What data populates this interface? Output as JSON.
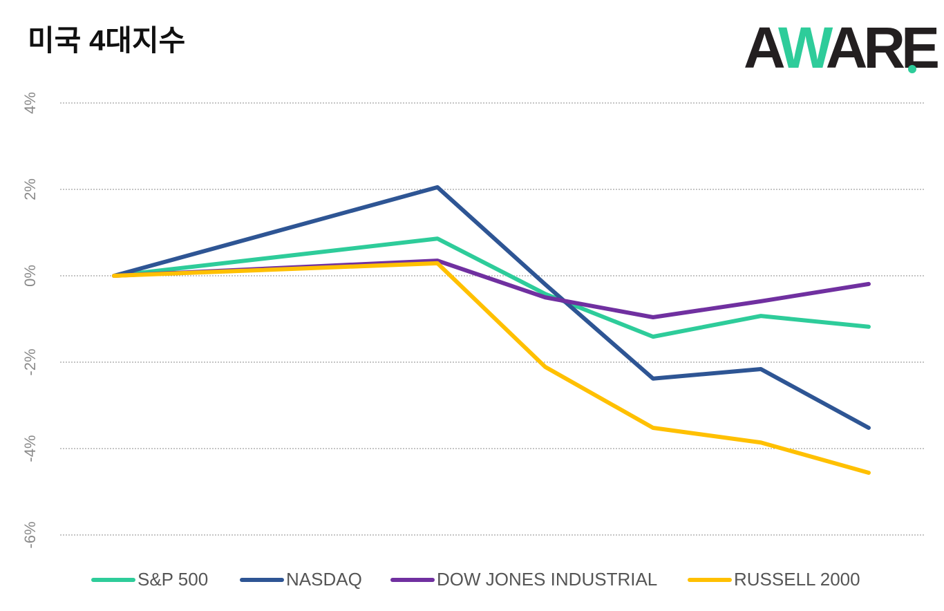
{
  "chart_data": {
    "type": "line",
    "title": "미국 4대지수",
    "logo": [
      "A",
      "W",
      "ARE"
    ],
    "x": [
      0,
      3,
      4,
      5,
      6,
      7
    ],
    "xlim": [
      0,
      7
    ],
    "ylim": [
      -6,
      4
    ],
    "yticks": [
      {
        "value": 4,
        "label": "4%"
      },
      {
        "value": 2,
        "label": "2%"
      },
      {
        "value": 0,
        "label": "0%"
      },
      {
        "value": -2,
        "label": "-2%"
      },
      {
        "value": -4,
        "label": "-4%"
      },
      {
        "value": -6,
        "label": "-6%"
      }
    ],
    "grid": true,
    "legend": "bottom",
    "series": [
      {
        "name": "S&P 500",
        "color": "#2ecc9a",
        "values": [
          0,
          0.86,
          -0.42,
          -1.41,
          -0.93,
          -1.18
        ]
      },
      {
        "name": "NASDAQ",
        "color": "#2e5594",
        "values": [
          0,
          2.05,
          -0.2,
          -2.38,
          -2.16,
          -3.52
        ]
      },
      {
        "name": "DOW JONES INDUSTRIAL",
        "color": "#7030a0",
        "values": [
          0,
          0.35,
          -0.5,
          -0.96,
          -0.59,
          -0.19
        ]
      },
      {
        "name": "RUSSELL 2000",
        "color": "#ffc000",
        "values": [
          0,
          0.29,
          -2.11,
          -3.52,
          -3.86,
          -4.56
        ]
      }
    ]
  }
}
